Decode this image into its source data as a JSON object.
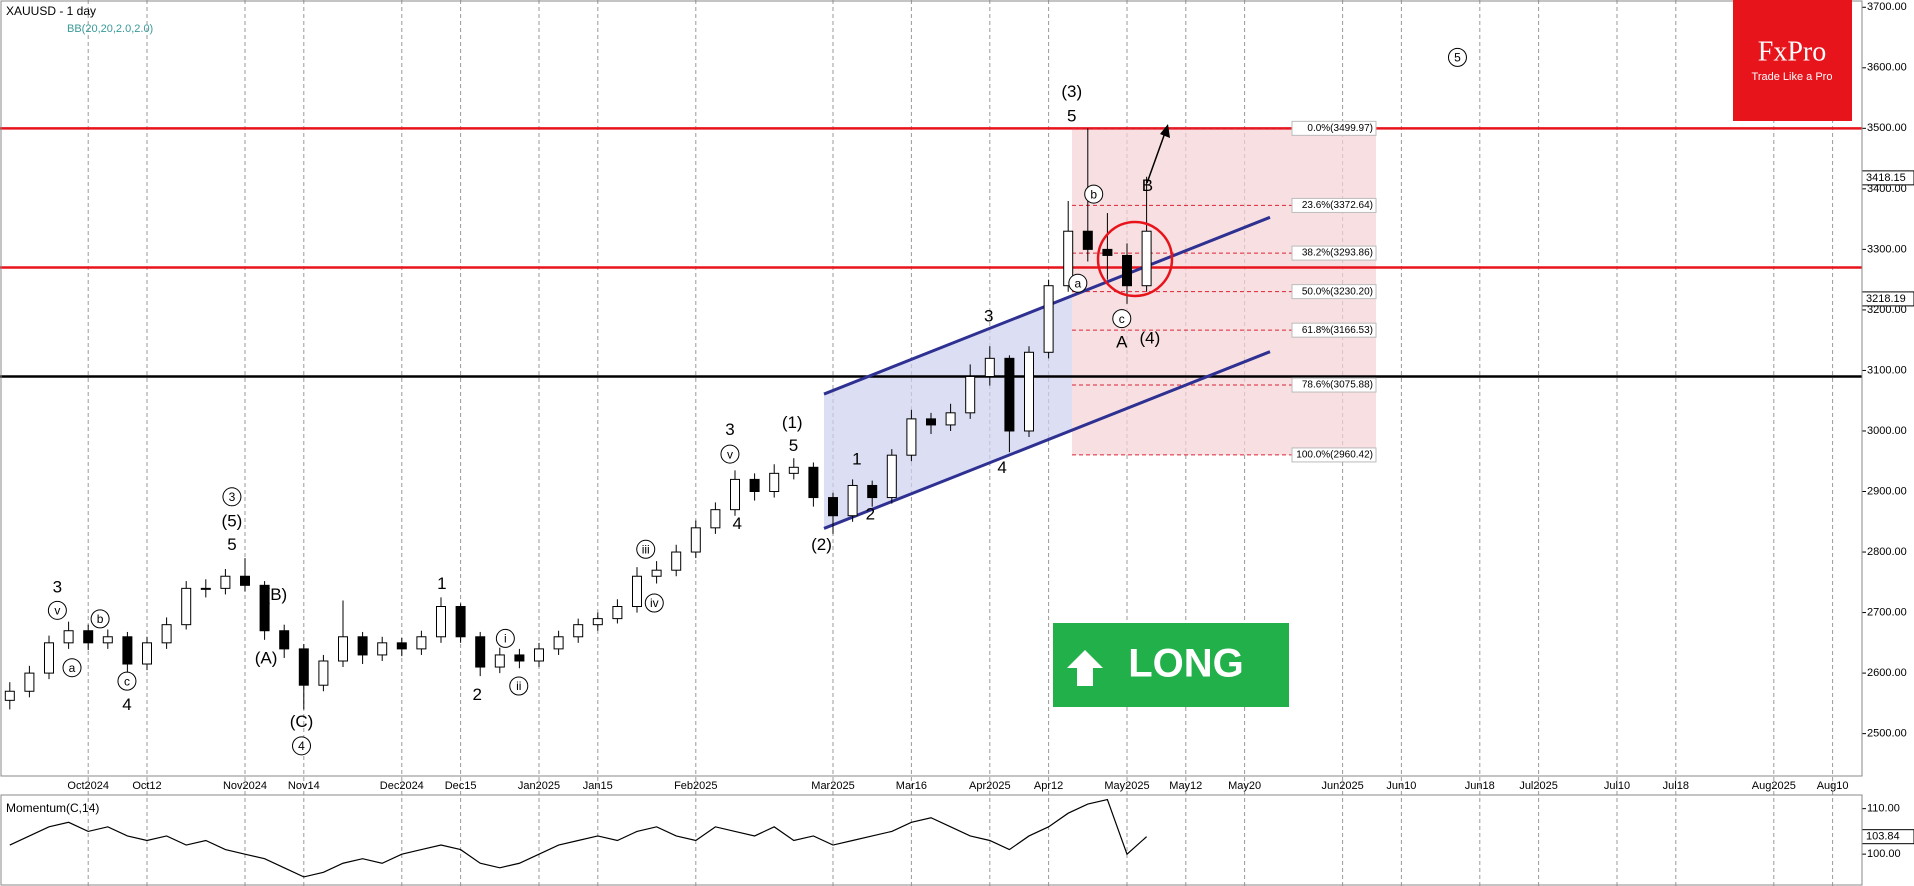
{
  "chart_data": [
    {
      "type": "candlestick",
      "title": "XAUUSD - 1 day",
      "indicator": "BB(20,20,2.0,2.0)",
      "categories": [
        null,
        null,
        null,
        null,
        "Oct2024",
        null,
        null,
        "Oct12",
        null,
        null,
        null,
        null,
        "Nov2024",
        null,
        null,
        "Nov14",
        null,
        null,
        null,
        null,
        "Dec2024",
        null,
        null,
        "Dec15",
        null,
        null,
        null,
        "Jan2025",
        null,
        null,
        "Jan15",
        null,
        null,
        null,
        null,
        "Feb2025",
        null,
        null,
        null,
        null,
        null,
        null,
        "Mar2025",
        null,
        null,
        null,
        "Mar16",
        null,
        null,
        null,
        "Apr2025",
        null,
        null,
        "Apr12",
        null,
        null,
        null,
        "May2025",
        null,
        null,
        "May12",
        null,
        null,
        "May20",
        null,
        null,
        null,
        null,
        "Jun2025",
        null,
        null,
        "Jun10",
        null,
        null,
        null,
        "Jun18",
        null,
        null,
        "Jul2025",
        null,
        null,
        null,
        "Jul10",
        null,
        null,
        "Jul18",
        null,
        null,
        null,
        null,
        "Aug2025",
        null,
        null,
        "Aug10",
        null
      ],
      "open": [
        2555,
        2570,
        2600,
        2650,
        2670,
        2650,
        2660,
        2615,
        2650,
        2680,
        2740,
        2740,
        2760,
        2745,
        2670,
        2640,
        2580,
        2620,
        2660,
        2630,
        2650,
        2640,
        2660,
        2710,
        2660,
        2610,
        2630,
        2620,
        2640,
        2660,
        2680,
        2690,
        2710,
        2760,
        2770,
        2800,
        2840,
        2870,
        2920,
        2900,
        2930,
        2940,
        2890,
        2860,
        2910,
        2890,
        2960,
        3020,
        3010,
        3030,
        3090,
        3120,
        3000,
        3130,
        3240,
        3330,
        3300,
        3290,
        3240,
        null,
        null,
        null,
        null,
        null,
        null,
        null,
        null,
        null,
        null,
        null,
        null,
        null,
        null,
        null,
        null,
        null,
        null,
        null,
        null,
        null,
        null,
        null,
        null,
        null,
        null,
        null,
        null,
        null,
        null,
        null,
        null,
        null,
        null,
        null,
        null
      ],
      "high": [
        2585,
        2612,
        2662,
        2685,
        2680,
        2672,
        2668,
        2660,
        2692,
        2752,
        2755,
        2772,
        2790,
        2752,
        2680,
        2648,
        2630,
        2720,
        2668,
        2660,
        2658,
        2670,
        2725,
        2715,
        2668,
        2642,
        2640,
        2650,
        2670,
        2690,
        2700,
        2722,
        2775,
        2785,
        2812,
        2852,
        2882,
        2935,
        2930,
        2945,
        2955,
        2948,
        2898,
        2920,
        2918,
        2970,
        3035,
        3030,
        3045,
        3110,
        3140,
        3125,
        3140,
        3250,
        3380,
        3500,
        3360,
        3310,
        3420,
        null,
        null,
        null,
        null,
        null,
        null,
        null,
        null,
        null,
        null,
        null,
        null,
        null,
        null,
        null,
        null,
        null,
        null,
        null,
        null,
        null,
        null,
        null,
        null,
        null,
        null,
        null,
        null,
        null,
        null,
        null,
        null,
        null,
        null,
        null,
        null
      ],
      "low": [
        2540,
        2560,
        2590,
        2640,
        2638,
        2640,
        2600,
        2605,
        2640,
        2672,
        2725,
        2730,
        2735,
        2655,
        2625,
        2540,
        2570,
        2610,
        2615,
        2620,
        2628,
        2630,
        2650,
        2650,
        2595,
        2600,
        2608,
        2610,
        2630,
        2650,
        2670,
        2682,
        2700,
        2748,
        2760,
        2790,
        2830,
        2860,
        2885,
        2890,
        2920,
        2875,
        2830,
        2850,
        2875,
        2880,
        2950,
        2995,
        3000,
        3020,
        3075,
        2965,
        2990,
        3120,
        3230,
        3280,
        3250,
        3210,
        3230,
        null,
        null,
        null,
        null,
        null,
        null,
        null,
        null,
        null,
        null,
        null,
        null,
        null,
        null,
        null,
        null,
        null,
        null,
        null,
        null,
        null,
        null,
        null,
        null,
        null,
        null,
        null,
        null,
        null,
        null,
        null,
        null,
        null,
        null,
        null,
        null
      ],
      "close": [
        2570,
        2600,
        2650,
        2670,
        2650,
        2660,
        2615,
        2650,
        2680,
        2740,
        2740,
        2760,
        2745,
        2670,
        2640,
        2580,
        2620,
        2660,
        2630,
        2650,
        2640,
        2660,
        2710,
        2660,
        2610,
        2630,
        2620,
        2640,
        2660,
        2680,
        2690,
        2710,
        2760,
        2770,
        2800,
        2840,
        2870,
        2920,
        2900,
        2930,
        2940,
        2890,
        2860,
        2910,
        2890,
        2960,
        3020,
        3010,
        3030,
        3090,
        3120,
        3000,
        3130,
        3240,
        3330,
        3300,
        3290,
        3240,
        3330,
        null,
        null,
        null,
        null,
        null,
        null,
        null,
        null,
        null,
        null,
        null,
        null,
        null,
        null,
        null,
        null,
        null,
        null,
        null,
        null,
        null,
        null,
        null,
        null,
        null,
        null,
        null,
        null,
        null,
        null,
        null,
        null,
        null,
        null,
        null,
        null
      ],
      "ylim": [
        2430,
        3712
      ],
      "yticks": [
        {
          "value": 3700,
          "label": "3700.00"
        },
        {
          "value": 3600,
          "label": "3600.00"
        },
        {
          "value": 3500,
          "label": "3500.00"
        },
        {
          "value": 3400,
          "label": "3400.00"
        },
        {
          "value": 3300,
          "label": "3300.00"
        },
        {
          "value": 3200,
          "label": "3200.00"
        },
        {
          "value": 3100,
          "label": "3100.00"
        },
        {
          "value": 3000,
          "label": "3000.00"
        },
        {
          "value": 2900,
          "label": "2900.00"
        },
        {
          "value": 2800,
          "label": "2800.00"
        },
        {
          "value": 2700,
          "label": "2700.00"
        },
        {
          "value": 2600,
          "label": "2600.00"
        },
        {
          "value": 2500,
          "label": "2500.00"
        }
      ],
      "price_marks": [
        {
          "value": 3418.15,
          "label": "3418.15"
        },
        {
          "value": 3218.19,
          "label": "3218.19"
        }
      ],
      "hlines": [
        {
          "value": 3500,
          "color": "#e8141c"
        },
        {
          "value": 3270,
          "color": "#e8141c"
        },
        {
          "value": 3090,
          "color": "#000000"
        }
      ],
      "fib": [
        {
          "value": 3499.97,
          "label": "0.0%(3499.97)"
        },
        {
          "value": 3372.64,
          "label": "23.6%(3372.64)"
        },
        {
          "value": 3293.86,
          "label": "38.2%(3293.86)"
        },
        {
          "value": 3230.2,
          "label": "50.0%(3230.20)"
        },
        {
          "value": 3166.53,
          "label": "61.8%(3166.53)"
        },
        {
          "value": 3075.88,
          "label": "78.6%(3075.88)"
        },
        {
          "value": 2960.42,
          "label": "100.0%(2960.42)"
        }
      ],
      "channel": {
        "upper": [
          3061,
          3353
        ],
        "lower": [
          2839,
          3131
        ],
        "color": "#2e3192"
      },
      "annotations": [
        "(3)",
        "5",
        "b",
        "a",
        "c",
        "A",
        "(4)",
        "B",
        "5",
        "3",
        "4",
        "1",
        "2",
        "(2)",
        "(1)",
        "5",
        "3",
        "v",
        "4",
        "iii",
        "iv",
        "3",
        "(5)",
        "5",
        "(B)",
        "(A)",
        "(C)",
        "4",
        "1",
        "2",
        "i",
        "ii",
        "3",
        "v",
        "b",
        "a",
        "c",
        "4"
      ],
      "signal": "LONG",
      "logo": {
        "name": "FxPro",
        "tagline": "Trade Like a Pro"
      }
    },
    {
      "type": "line",
      "title": "Momentum(C,14)",
      "values": [
        102,
        104,
        106,
        107,
        105,
        106,
        104,
        103,
        104,
        102,
        103,
        101,
        100,
        99,
        97,
        95,
        96,
        98,
        99,
        98,
        100,
        101,
        102,
        101,
        98,
        97,
        98,
        100,
        102,
        103,
        104,
        103,
        105,
        106,
        104,
        103,
        106,
        105,
        104,
        106,
        103,
        104,
        102,
        103,
        104,
        105,
        107,
        108,
        106,
        104,
        103,
        101,
        104,
        106,
        109,
        111,
        112,
        100,
        103.84
      ],
      "ylim": [
        93,
        113
      ],
      "yticks": [
        {
          "value": 110,
          "label": "110.00"
        },
        {
          "value": 100,
          "label": "100.00"
        }
      ],
      "last": {
        "value": 103.84,
        "label": "103.84"
      }
    }
  ]
}
